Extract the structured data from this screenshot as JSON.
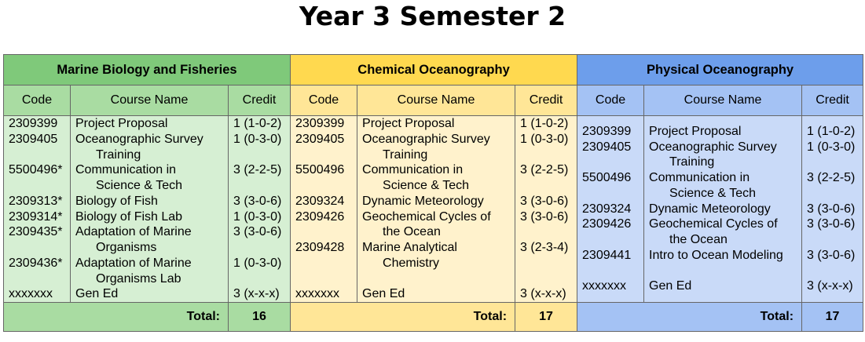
{
  "title": "Year 3 Semester 2",
  "headers": {
    "code": "Code",
    "course_name": "Course Name",
    "credit": "Credit",
    "total_label": "Total:"
  },
  "programs": [
    {
      "name": "Marine Biology and Fisheries",
      "total": "16",
      "courses": [
        {
          "code": "2309399",
          "name": [
            "Project Proposal"
          ],
          "credit": "1 (1-0-2)"
        },
        {
          "code": "2309405",
          "name": [
            "Oceanographic Survey",
            "Training"
          ],
          "credit": "1 (0-3-0)"
        },
        {
          "code": "5500496*",
          "name": [
            "Communication in",
            "Science & Tech"
          ],
          "credit": "3 (2-2-5)"
        },
        {
          "code": "2309313*",
          "name": [
            "Biology of Fish"
          ],
          "credit": "3 (3-0-6)"
        },
        {
          "code": "2309314*",
          "name": [
            "Biology of Fish Lab"
          ],
          "credit": "1 (0-3-0)"
        },
        {
          "code": "2309435*",
          "name": [
            "Adaptation of Marine",
            "Organisms"
          ],
          "credit": "3 (3-0-6)"
        },
        {
          "code": "2309436*",
          "name": [
            "Adaptation of Marine",
            "Organisms Lab"
          ],
          "credit": "1 (0-3-0)"
        },
        {
          "code": "xxxxxxx",
          "name": [
            "Gen Ed"
          ],
          "credit": "3 (x-x-x)"
        }
      ]
    },
    {
      "name": "Chemical Oceanography",
      "total": "17",
      "courses": [
        {
          "code": "2309399",
          "name": [
            "Project Proposal"
          ],
          "credit": "1 (1-0-2)"
        },
        {
          "code": "2309405",
          "name": [
            "Oceanographic Survey",
            "Training"
          ],
          "credit": "1 (0-3-0)"
        },
        {
          "code": "5500496",
          "name": [
            "Communication in",
            "Science & Tech"
          ],
          "credit": "3 (2-2-5)"
        },
        {
          "code": "2309324",
          "name": [
            "Dynamic Meteorology"
          ],
          "credit": "3 (3-0-6)"
        },
        {
          "code": "2309426",
          "name": [
            "Geochemical Cycles of",
            "the Ocean"
          ],
          "credit": "3 (3-0-6)"
        },
        {
          "code": "2309428",
          "name": [
            "Marine Analytical",
            "Chemistry"
          ],
          "credit": "3 (2-3-4)"
        },
        {
          "code": "",
          "name": [
            ""
          ],
          "credit": ""
        },
        {
          "code": "xxxxxxx",
          "name": [
            "Gen Ed"
          ],
          "credit": "3 (x-x-x)"
        }
      ]
    },
    {
      "name": "Physical Oceanography",
      "total": "17",
      "courses": [
        {
          "code": "2309399",
          "name": [
            "Project Proposal"
          ],
          "credit": "1 (1-0-2)"
        },
        {
          "code": "2309405",
          "name": [
            "Oceanographic Survey",
            "Training"
          ],
          "credit": "1 (0-3-0)"
        },
        {
          "code": "5500496",
          "name": [
            "Communication in",
            "Science & Tech"
          ],
          "credit": "3 (2-2-5)"
        },
        {
          "code": "2309324",
          "name": [
            "Dynamic Meteorology"
          ],
          "credit": "3 (3-0-6)"
        },
        {
          "code": "2309426",
          "name": [
            "Geochemical Cycles of",
            "the Ocean"
          ],
          "credit": "3 (3-0-6)"
        },
        {
          "code": "2309441",
          "name": [
            "Intro to Ocean Modeling"
          ],
          "credit": "3 (3-0-6)"
        },
        {
          "code": "",
          "name": [
            ""
          ],
          "credit": ""
        },
        {
          "code": "xxxxxxx",
          "name": [
            "Gen Ed"
          ],
          "credit": "3 (x-x-x)"
        }
      ]
    }
  ],
  "colors": {
    "green_header": "#7fc97a",
    "green_sub": "#a9dca2",
    "green_body": "#d6efd3",
    "yellow_header": "#ffd94f",
    "yellow_sub": "#ffe697",
    "yellow_body": "#fff2cc",
    "blue_header": "#6d9eeb",
    "blue_sub": "#a4c2f4",
    "blue_body": "#c9daf8"
  }
}
